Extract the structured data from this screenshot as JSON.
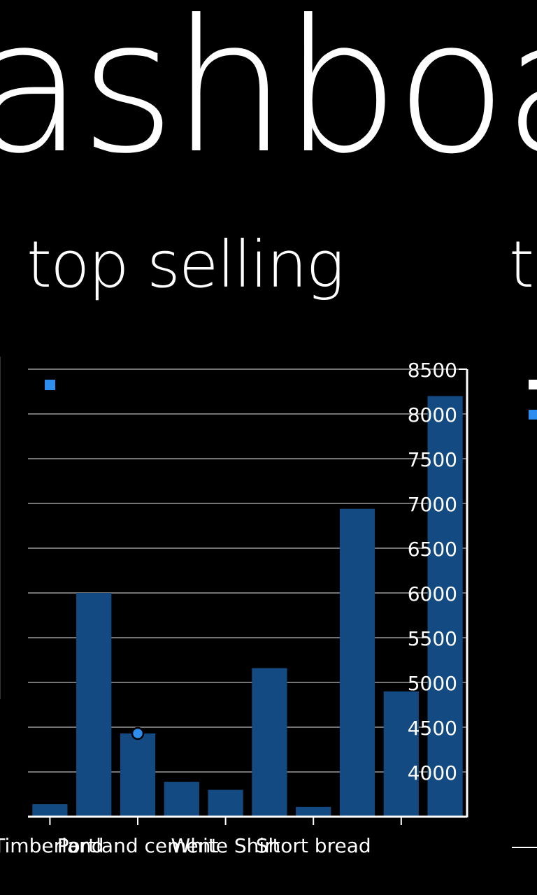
{
  "panorama": {
    "title": "ashboar",
    "sections": [
      {
        "header": "top selling"
      },
      {
        "header": "to"
      }
    ]
  },
  "colors": {
    "background": "#000000",
    "foreground": "#ffffff",
    "bar": "#134a82",
    "accent": "#2d8ef0",
    "gridline": "#9a9a9a",
    "next_legend_top": "#ffffff",
    "next_legend_bottom": "#2d8ef0"
  },
  "chart_data": {
    "type": "bar",
    "title": "",
    "xlabel": "",
    "ylabel": "",
    "ylim": [
      3500,
      8500
    ],
    "yticks": [
      4000,
      4500,
      5000,
      5500,
      6000,
      6500,
      7000,
      7500,
      8000,
      8500
    ],
    "y_axis_position": "right",
    "grid": true,
    "legend": {
      "position": "top-left",
      "marker_color": "#2d8ef0"
    },
    "categories": [
      "Timberland",
      "",
      "Portland cement",
      "",
      "",
      "White Shirt",
      "",
      "",
      "Short bread",
      ""
    ],
    "x_tick_labels": [
      "Timberland",
      "Portland cement",
      "White Shirt",
      "Short bread"
    ],
    "series": [
      {
        "values": [
          3640,
          6000,
          4430,
          3890,
          3800,
          5160,
          3610,
          6940,
          4900,
          8200
        ]
      }
    ],
    "highlighted_point": {
      "category_index": 2,
      "value": 4430
    }
  }
}
